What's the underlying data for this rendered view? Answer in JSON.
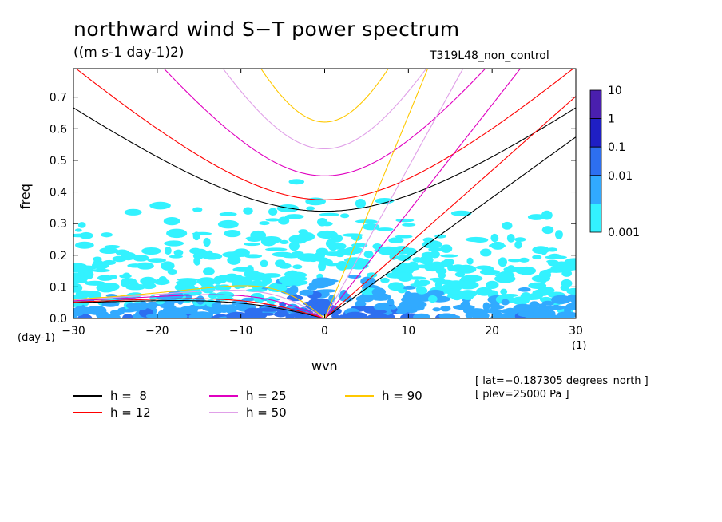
{
  "chart_data": {
    "type": "heatmap",
    "title": "northward wind S−T power spectrum",
    "subtitle": "((m s-1 day-1)2)",
    "run_label": "T319L48_non_control",
    "xlabel": "wvn",
    "ylabel": "freq",
    "x_unit": "(1)",
    "y_unit": "(day-1)",
    "xlim": [
      -30,
      30
    ],
    "ylim": [
      0,
      0.79
    ],
    "x_ticks": [
      "−30",
      "−20",
      "−10",
      "0",
      "10",
      "20",
      "30"
    ],
    "x_tick_values": [
      -30,
      -20,
      -10,
      0,
      10,
      20,
      30
    ],
    "y_ticks": [
      "0.0",
      "0.1",
      "0.2",
      "0.3",
      "0.4",
      "0.5",
      "0.6",
      "0.7"
    ],
    "y_tick_values": [
      0,
      0.1,
      0.2,
      0.3,
      0.4,
      0.5,
      0.6,
      0.7
    ],
    "colorbar": {
      "labels": [
        "10",
        "1",
        "0.1",
        "0.01",
        "0.001"
      ],
      "colors": [
        "#4a1fae",
        "#1f1fc4",
        "#2d6ff0",
        "#31aaff",
        "#33f2ff"
      ]
    },
    "dispersion_curves": [
      {
        "name": "h =  8",
        "h": 8,
        "color": "#000000"
      },
      {
        "name": "h = 12",
        "h": 12,
        "color": "#ff0000"
      },
      {
        "name": "h = 25",
        "h": 25,
        "color": "#e000c0"
      },
      {
        "name": "h = 50",
        "h": 50,
        "color": "#e0a0e8"
      },
      {
        "name": "h = 90",
        "h": 90,
        "color": "#ffc800"
      }
    ],
    "annotations": [
      "[ lat=−0.187305 degrees_north ]",
      "[ plev=25000 Pa ]"
    ]
  }
}
